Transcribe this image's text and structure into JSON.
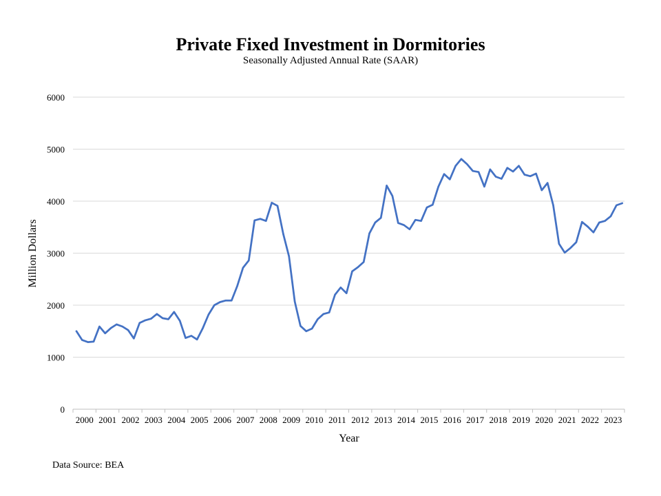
{
  "chart_data": {
    "type": "line",
    "title": "Private Fixed Investment in Dormitories",
    "subtitle": "Seasonally Adjusted Annual Rate (SAAR)",
    "xlabel": "Year",
    "ylabel": "Million Dollars",
    "ylim": [
      0,
      6000
    ],
    "yticks": [
      0,
      1000,
      2000,
      3000,
      4000,
      5000,
      6000
    ],
    "xticks": [
      "2000",
      "2001",
      "2002",
      "2003",
      "2004",
      "2005",
      "2006",
      "2007",
      "2008",
      "2009",
      "2010",
      "2011",
      "2012",
      "2013",
      "2014",
      "2015",
      "2016",
      "2017",
      "2018",
      "2019",
      "2020",
      "2021",
      "2022",
      "2023"
    ],
    "grid": "horizontal",
    "line_color": "#4472C4",
    "x": [
      "2000-Q1",
      "2000-Q2",
      "2000-Q3",
      "2000-Q4",
      "2001-Q1",
      "2001-Q2",
      "2001-Q3",
      "2001-Q4",
      "2002-Q1",
      "2002-Q2",
      "2002-Q3",
      "2002-Q4",
      "2003-Q1",
      "2003-Q2",
      "2003-Q3",
      "2003-Q4",
      "2004-Q1",
      "2004-Q2",
      "2004-Q3",
      "2004-Q4",
      "2005-Q1",
      "2005-Q2",
      "2005-Q3",
      "2005-Q4",
      "2006-Q1",
      "2006-Q2",
      "2006-Q3",
      "2006-Q4",
      "2007-Q1",
      "2007-Q2",
      "2007-Q3",
      "2007-Q4",
      "2008-Q1",
      "2008-Q2",
      "2008-Q3",
      "2008-Q4",
      "2009-Q1",
      "2009-Q2",
      "2009-Q3",
      "2009-Q4",
      "2010-Q1",
      "2010-Q2",
      "2010-Q3",
      "2010-Q4",
      "2011-Q1",
      "2011-Q2",
      "2011-Q3",
      "2011-Q4",
      "2012-Q1",
      "2012-Q2",
      "2012-Q3",
      "2012-Q4",
      "2013-Q1",
      "2013-Q2",
      "2013-Q3",
      "2013-Q4",
      "2014-Q1",
      "2014-Q2",
      "2014-Q3",
      "2014-Q4",
      "2015-Q1",
      "2015-Q2",
      "2015-Q3",
      "2015-Q4",
      "2016-Q1",
      "2016-Q2",
      "2016-Q3",
      "2016-Q4",
      "2017-Q1",
      "2017-Q2",
      "2017-Q3",
      "2017-Q4",
      "2018-Q1",
      "2018-Q2",
      "2018-Q3",
      "2018-Q4",
      "2019-Q1",
      "2019-Q2",
      "2019-Q3",
      "2019-Q4",
      "2020-Q1",
      "2020-Q2",
      "2020-Q3",
      "2020-Q4",
      "2021-Q1",
      "2021-Q2",
      "2021-Q3",
      "2021-Q4",
      "2022-Q1",
      "2022-Q2",
      "2022-Q3",
      "2022-Q4",
      "2023-Q1",
      "2023-Q2",
      "2023-Q3",
      "2023-Q4"
    ],
    "series": [
      {
        "values": [
          1500,
          1330,
          1290,
          1300,
          1590,
          1460,
          1560,
          1630,
          1590,
          1520,
          1360,
          1660,
          1710,
          1740,
          1830,
          1750,
          1730,
          1870,
          1700,
          1370,
          1410,
          1340,
          1560,
          1820,
          2000,
          2060,
          2090,
          2090,
          2370,
          2720,
          2860,
          3630,
          3660,
          3620,
          3970,
          3910,
          3370,
          2940,
          2070,
          1600,
          1500,
          1550,
          1730,
          1830,
          1860,
          2200,
          2340,
          2230,
          2650,
          2730,
          2830,
          3380,
          3590,
          3680,
          4300,
          4100,
          3580,
          3540,
          3460,
          3640,
          3620,
          3880,
          3930,
          4280,
          4520,
          4420,
          4680,
          4810,
          4710,
          4580,
          4560,
          4280,
          4610,
          4470,
          4430,
          4640,
          4570,
          4680,
          4510,
          4480,
          4530,
          4210,
          4350,
          3920,
          3180,
          3010,
          3100,
          3210,
          3600,
          3510,
          3400,
          3590,
          3620,
          3710,
          3920,
          3960
        ]
      }
    ]
  },
  "source_note": "Data Source: BEA"
}
